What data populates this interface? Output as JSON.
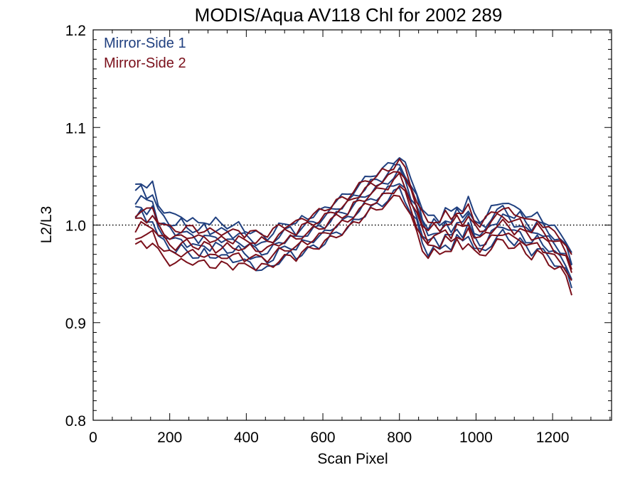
{
  "chart_data": {
    "type": "line",
    "title": "MODIS/Aqua AV118 Chl for 2002 289",
    "xlabel": "Scan Pixel",
    "ylabel": "L2/L3",
    "xlim": [
      0,
      1354
    ],
    "ylim": [
      0.8,
      1.2
    ],
    "xticks": [
      "0",
      "200",
      "400",
      "600",
      "800",
      "1000",
      "1200"
    ],
    "yticks": [
      "0.8",
      "0.9",
      "1.0",
      "1.1",
      "1.2"
    ],
    "reference_line": {
      "y": 1.0,
      "style": "dotted"
    },
    "legend": {
      "placement": "top-left"
    },
    "x": [
      110,
      125,
      140,
      155,
      170,
      185,
      200,
      215,
      230,
      245,
      260,
      275,
      290,
      305,
      320,
      335,
      350,
      365,
      380,
      395,
      410,
      425,
      440,
      455,
      470,
      485,
      500,
      515,
      530,
      545,
      560,
      575,
      590,
      605,
      620,
      635,
      650,
      665,
      680,
      695,
      710,
      725,
      740,
      755,
      770,
      785,
      800,
      815,
      830,
      845,
      860,
      875,
      890,
      905,
      920,
      935,
      950,
      965,
      980,
      995,
      1010,
      1025,
      1040,
      1055,
      1070,
      1085,
      1100,
      1115,
      1130,
      1145,
      1160,
      1175,
      1190,
      1205,
      1220,
      1235,
      1250
    ],
    "series": [
      {
        "name": "Mirror-Side 1",
        "color": "#1f3f7f",
        "values": [
          1.025,
          1.03,
          1.022,
          1.025,
          1.005,
          1.0,
          0.995,
          0.992,
          0.995,
          0.99,
          0.988,
          0.985,
          0.99,
          0.985,
          0.988,
          0.986,
          0.984,
          0.982,
          0.984,
          0.98,
          0.978,
          0.975,
          0.973,
          0.972,
          0.976,
          0.982,
          0.985,
          0.988,
          0.985,
          0.99,
          0.992,
          0.995,
          0.997,
          1.0,
          1.005,
          1.01,
          1.012,
          1.015,
          1.02,
          1.025,
          1.03,
          1.035,
          1.038,
          1.04,
          1.045,
          1.05,
          1.055,
          1.045,
          1.03,
          1.02,
          1.0,
          0.99,
          0.995,
          0.99,
          1.0,
          0.995,
          1.005,
          1.0,
          1.01,
          0.995,
          0.99,
          0.992,
          1.0,
          1.005,
          1.01,
          1.005,
          1.0,
          1.002,
          0.995,
          0.99,
          0.995,
          0.99,
          0.985,
          0.98,
          0.975,
          0.97,
          0.955
        ]
      },
      {
        "name": "Mirror-Side 2",
        "color": "#7a0f1a",
        "values": [
          0.995,
          1.0,
          0.998,
          1.0,
          0.99,
          0.985,
          0.98,
          0.978,
          0.98,
          0.982,
          0.98,
          0.978,
          0.98,
          0.978,
          0.975,
          0.977,
          0.978,
          0.976,
          0.978,
          0.975,
          0.977,
          0.975,
          0.976,
          0.975,
          0.978,
          0.982,
          0.984,
          0.986,
          0.985,
          0.99,
          0.992,
          0.995,
          0.997,
          1.0,
          1.004,
          1.008,
          1.01,
          1.013,
          1.02,
          1.024,
          1.028,
          1.032,
          1.034,
          1.038,
          1.04,
          1.045,
          1.05,
          1.04,
          1.025,
          1.01,
          0.995,
          0.985,
          0.99,
          0.988,
          0.995,
          0.99,
          1.0,
          0.995,
          1.002,
          0.99,
          0.985,
          0.99,
          0.995,
          1.0,
          1.002,
          0.998,
          0.994,
          0.996,
          0.99,
          0.986,
          0.99,
          0.985,
          0.98,
          0.975,
          0.972,
          0.965,
          0.95
        ]
      }
    ]
  }
}
